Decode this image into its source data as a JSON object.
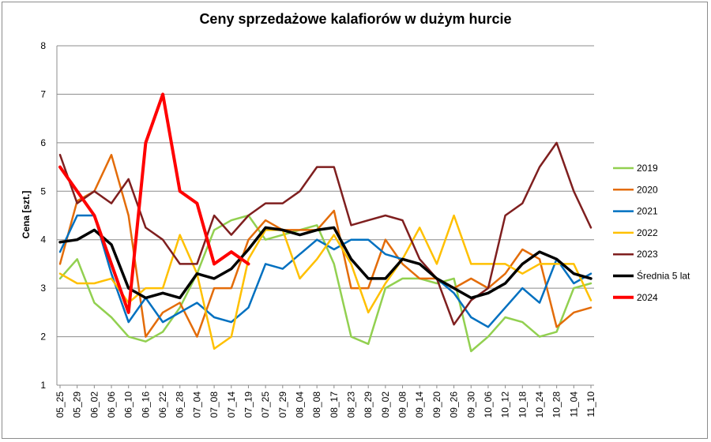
{
  "chart_data": {
    "type": "line",
    "title": "Ceny sprzedażowe kalafiorów w dużym hurcie",
    "xlabel": "",
    "ylabel": "Cena [szt.]",
    "ylim": [
      1,
      8
    ],
    "yticks": [
      1,
      2,
      3,
      4,
      5,
      6,
      7,
      8
    ],
    "grid": true,
    "legend_position": "right",
    "x_tick_labels": [
      "05_25",
      "05_29",
      "06_02",
      "06_06",
      "06_10",
      "06_16",
      "06_22",
      "06_28",
      "07_04",
      "07_08",
      "07_14",
      "07_19",
      "07_25",
      "07_29",
      "08_04",
      "08_08",
      "08_17",
      "08_23",
      "08_29",
      "09_02",
      "09_08",
      "09_14",
      "09_20",
      "09_26",
      "09_30",
      "10_06",
      "10_12",
      "10_18",
      "10_24",
      "10_28",
      "11_04",
      "11_10"
    ],
    "x": [
      "05_25",
      "05_29",
      "06_02",
      "06_06",
      "06_10",
      "06_16",
      "06_22",
      "06_28",
      "07_04",
      "07_08",
      "07_14",
      "07_19",
      "07_25",
      "07_29",
      "08_04",
      "08_08",
      "08_17",
      "08_23",
      "08_29",
      "09_02",
      "09_08",
      "09_14",
      "09_20",
      "09_26",
      "09_30",
      "10_06",
      "10_12",
      "10_18",
      "10_24",
      "10_28",
      "11_04",
      "11_10"
    ],
    "series": [
      {
        "name": "2019",
        "color": "#92d050",
        "width": 2.5,
        "values": [
          3.2,
          3.6,
          2.7,
          2.4,
          2.0,
          1.9,
          2.1,
          2.6,
          3.3,
          4.2,
          4.4,
          4.5,
          4.0,
          4.1,
          4.2,
          4.3,
          3.5,
          2.0,
          1.85,
          3.0,
          3.2,
          3.2,
          3.1,
          3.2,
          1.7,
          2.0,
          2.4,
          2.3,
          2.0,
          2.1,
          3.0,
          3.1
        ]
      },
      {
        "name": "2020",
        "color": "#e36c09",
        "width": 2.5,
        "values": [
          3.5,
          4.8,
          5.0,
          5.75,
          4.5,
          2.0,
          2.5,
          2.7,
          2.0,
          3.0,
          3.0,
          4.0,
          4.4,
          4.2,
          4.2,
          4.2,
          4.6,
          3.0,
          3.0,
          4.0,
          3.5,
          3.2,
          3.2,
          3.0,
          3.2,
          3.0,
          3.3,
          3.8,
          3.6,
          2.2,
          2.5,
          2.6
        ]
      },
      {
        "name": "2021",
        "color": "#0070c0",
        "width": 2.5,
        "values": [
          3.75,
          4.5,
          4.5,
          3.3,
          2.3,
          2.8,
          2.3,
          2.5,
          2.7,
          2.4,
          2.3,
          2.6,
          3.5,
          3.4,
          3.7,
          4.0,
          3.8,
          4.0,
          4.0,
          3.7,
          3.6,
          3.5,
          3.2,
          2.9,
          2.4,
          2.2,
          2.6,
          3.0,
          2.7,
          3.6,
          3.1,
          3.3
        ]
      },
      {
        "name": "2022",
        "color": "#ffc000",
        "width": 2.5,
        "values": [
          3.3,
          3.1,
          3.1,
          3.2,
          2.7,
          3.0,
          3.0,
          4.1,
          3.3,
          1.75,
          2.0,
          3.6,
          4.2,
          4.2,
          3.2,
          3.6,
          4.1,
          3.5,
          2.5,
          3.1,
          3.6,
          4.25,
          3.5,
          4.5,
          3.5,
          3.5,
          3.5,
          3.3,
          3.5,
          3.5,
          3.5,
          2.75
        ]
      },
      {
        "name": "2023",
        "color": "#7f1f1f",
        "width": 2.5,
        "values": [
          5.75,
          4.75,
          5.0,
          4.75,
          5.25,
          4.25,
          4.0,
          3.5,
          3.5,
          4.5,
          4.1,
          4.5,
          4.75,
          4.75,
          5.0,
          5.5,
          5.5,
          4.3,
          4.4,
          4.5,
          4.4,
          3.6,
          3.2,
          2.25,
          2.75,
          3.0,
          4.5,
          4.75,
          5.5,
          6.0,
          5.0,
          4.25
        ]
      },
      {
        "name": "Średnia 5 lat",
        "color": "#000000",
        "width": 3.5,
        "values": [
          3.95,
          4.0,
          4.2,
          3.9,
          3.0,
          2.8,
          2.9,
          2.8,
          3.3,
          3.2,
          3.4,
          3.8,
          4.25,
          4.2,
          4.1,
          4.2,
          4.25,
          3.6,
          3.2,
          3.2,
          3.6,
          3.5,
          3.2,
          3.0,
          2.8,
          2.9,
          3.1,
          3.5,
          3.75,
          3.6,
          3.3,
          3.2
        ]
      },
      {
        "name": "2024",
        "color": "#ff0000",
        "width": 4,
        "values": [
          5.5,
          5.0,
          4.5,
          3.5,
          2.5,
          6.0,
          7.0,
          5.0,
          4.75,
          3.5,
          3.75,
          3.5,
          null,
          null,
          null,
          null,
          null,
          null,
          null,
          null,
          null,
          null,
          null,
          null,
          null,
          null,
          null,
          null,
          null,
          null,
          null,
          null
        ]
      }
    ]
  }
}
